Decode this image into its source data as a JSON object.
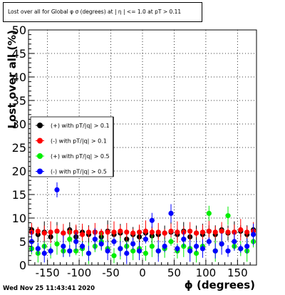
{
  "title": "Lost over all for Global φ σ (degrees) at |  η | <= 1.0 at pT > 0.11",
  "footer": "Wed Nov 25 11:43:41 2020",
  "colors": {
    "black": "#000000",
    "red": "#ff0000",
    "green": "#00ee00",
    "blue": "#0000ff",
    "frame": "#000000",
    "grid": "#000000"
  },
  "chart_data": {
    "type": "scatter",
    "xlabel": "ϕ (degrees)",
    "ylabel": "Lost over all (%)",
    "xlim": [
      -180,
      180
    ],
    "ylim": [
      0,
      50
    ],
    "xticks": [
      -150,
      -100,
      -50,
      0,
      50,
      100,
      150
    ],
    "yticks": [
      0,
      5,
      10,
      15,
      20,
      25,
      30,
      35,
      40,
      45,
      50
    ],
    "grid": true,
    "legend_position": "left",
    "series": [
      {
        "name": "(+) with pT/|q| > 0.1",
        "color": "#000000",
        "x": [
          -175,
          -165,
          -155,
          -145,
          -135,
          -125,
          -115,
          -105,
          -95,
          -85,
          -75,
          -65,
          -55,
          -45,
          -35,
          -25,
          -15,
          -5,
          5,
          15,
          25,
          35,
          45,
          55,
          65,
          75,
          85,
          95,
          105,
          115,
          125,
          135,
          145,
          155,
          165,
          175
        ],
        "y": [
          7.5,
          6.5,
          7.0,
          6.0,
          7.2,
          6.8,
          7.5,
          6.0,
          7.0,
          6.5,
          7.0,
          6.0,
          7.2,
          6.5,
          6.8,
          5.5,
          6.5,
          6.0,
          6.8,
          6.2,
          6.5,
          6.8,
          7.0,
          6.5,
          7.2,
          6.0,
          6.8,
          6.5,
          7.2,
          6.5,
          7.5,
          6.8,
          7.0,
          7.2,
          6.5,
          7.5
        ]
      },
      {
        "name": "(-) with pT/|q| > 0.1",
        "color": "#ff0000",
        "x": [
          -175,
          -165,
          -155,
          -145,
          -135,
          -125,
          -115,
          -105,
          -95,
          -85,
          -75,
          -65,
          -55,
          -45,
          -35,
          -25,
          -15,
          -5,
          5,
          15,
          25,
          35,
          45,
          55,
          65,
          75,
          85,
          95,
          105,
          115,
          125,
          135,
          145,
          155,
          165,
          175
        ],
        "y": [
          7.0,
          7.2,
          6.8,
          7.0,
          7.2,
          6.8,
          7.0,
          7.0,
          6.5,
          7.0,
          7.0,
          6.8,
          7.0,
          7.0,
          7.2,
          7.0,
          6.8,
          7.0,
          7.2,
          7.0,
          7.0,
          6.8,
          7.2,
          7.0,
          7.0,
          7.2,
          6.8,
          7.0,
          7.2,
          7.0,
          7.2,
          7.0,
          7.0,
          7.5,
          7.0,
          7.2
        ]
      },
      {
        "name": "(+) with pT/|q| > 0.5",
        "color": "#00ee00",
        "x": [
          -175,
          -165,
          -155,
          -145,
          -135,
          -125,
          -115,
          -105,
          -95,
          -85,
          -75,
          -65,
          -55,
          -45,
          -35,
          -25,
          -15,
          -5,
          5,
          15,
          25,
          35,
          45,
          55,
          65,
          75,
          85,
          95,
          105,
          115,
          125,
          135,
          145,
          155,
          165,
          175
        ],
        "y": [
          3.5,
          2.5,
          4.0,
          3.0,
          4.5,
          3.0,
          5.5,
          3.0,
          3.5,
          2.5,
          4.0,
          5.0,
          3.5,
          2.0,
          3.5,
          4.0,
          3.0,
          3.5,
          2.5,
          4.0,
          3.0,
          3.5,
          5.0,
          3.0,
          4.0,
          3.5,
          2.5,
          4.0,
          11.0,
          3.0,
          4.5,
          10.5,
          4.0,
          3.5,
          3.0,
          5.0
        ]
      },
      {
        "name": "(-) with pT/|q| > 0.5",
        "color": "#0000ff",
        "x": [
          -175,
          -165,
          -155,
          -145,
          -135,
          -125,
          -115,
          -105,
          -95,
          -85,
          -75,
          -65,
          -55,
          -45,
          -35,
          -25,
          -15,
          -5,
          5,
          15,
          25,
          35,
          45,
          55,
          65,
          75,
          85,
          95,
          105,
          115,
          125,
          135,
          145,
          155,
          165,
          175
        ],
        "y": [
          5.0,
          3.5,
          2.5,
          3.0,
          16.0,
          4.0,
          3.0,
          5.0,
          4.0,
          2.5,
          5.5,
          4.5,
          3.0,
          5.0,
          3.5,
          2.5,
          4.5,
          3.0,
          5.5,
          9.5,
          3.0,
          4.0,
          11.0,
          3.5,
          5.5,
          3.0,
          4.0,
          3.5,
          5.0,
          3.0,
          4.5,
          3.0,
          5.0,
          3.5,
          4.0,
          6.5
        ]
      }
    ]
  }
}
